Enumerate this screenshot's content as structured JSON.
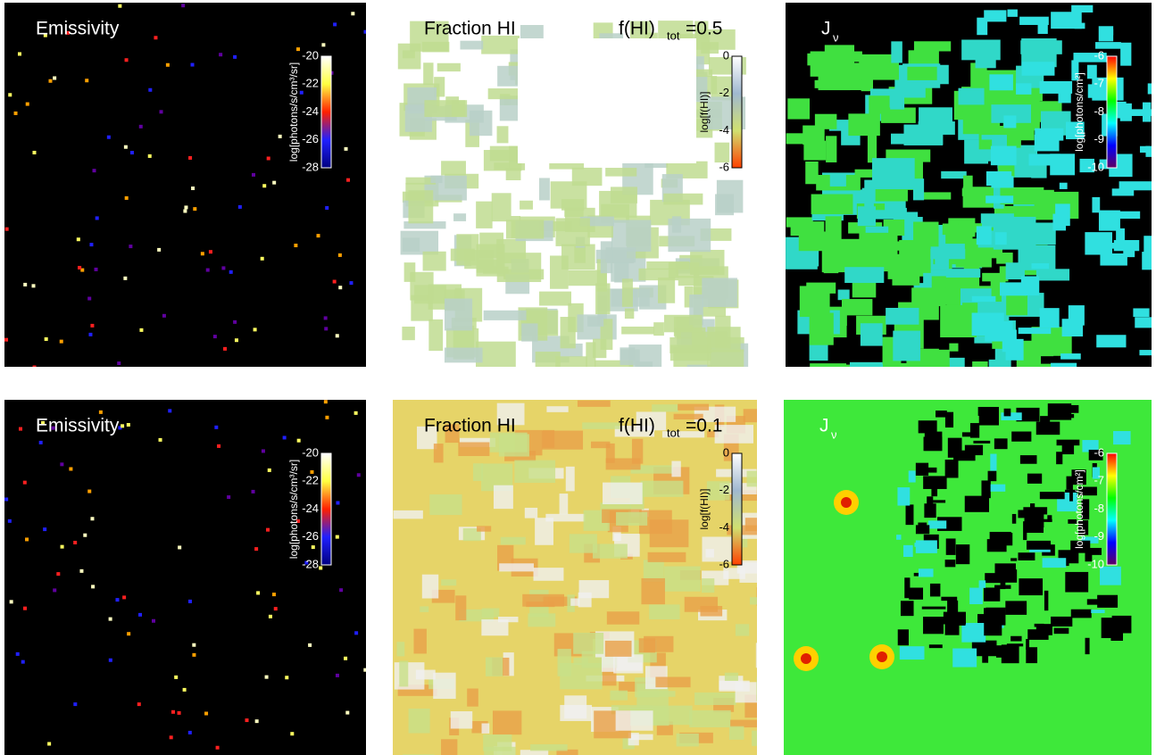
{
  "panels": [
    {
      "kind": "emissivity",
      "title": "Emissivity",
      "colorbar": {
        "label": "log[photons/s/cm³/sr]",
        "ticks": [
          "-20",
          "-22",
          "-24",
          "-26",
          "-28"
        ]
      }
    },
    {
      "kind": "fraction",
      "title": "Fraction HI",
      "annotation": {
        "main": "f(HI)",
        "sub": "tot",
        "rest": "=0.5"
      },
      "colorbar": {
        "label": "log[f(HI)]",
        "ticks": [
          "0",
          "-2",
          "-4",
          "-6"
        ]
      }
    },
    {
      "kind": "flux",
      "title": {
        "main": "J",
        "sub": "ν"
      },
      "colorbar": {
        "label": "log[photons/cm²]",
        "ticks": [
          "-6",
          "-7",
          "-8",
          "-9",
          "-10"
        ]
      }
    },
    {
      "kind": "emissivity",
      "title": "Emissivity",
      "colorbar": {
        "label": "log[photons/s/cm³/sr]",
        "ticks": [
          "-20",
          "-22",
          "-24",
          "-26",
          "-28"
        ]
      }
    },
    {
      "kind": "fraction2",
      "title": "Fraction HI",
      "annotation": {
        "main": "f(HI)",
        "sub": "tot",
        "rest": "=0.1"
      },
      "colorbar": {
        "label": "log[f(HI)]",
        "ticks": [
          "0",
          "-2",
          "-4",
          "-6"
        ]
      }
    },
    {
      "kind": "flux2",
      "title": {
        "main": "J",
        "sub": "ν"
      },
      "colorbar": {
        "label": "log[photons/cm²]",
        "ticks": [
          "-6",
          "-7",
          "-8",
          "-9",
          "-10"
        ]
      }
    }
  ]
}
